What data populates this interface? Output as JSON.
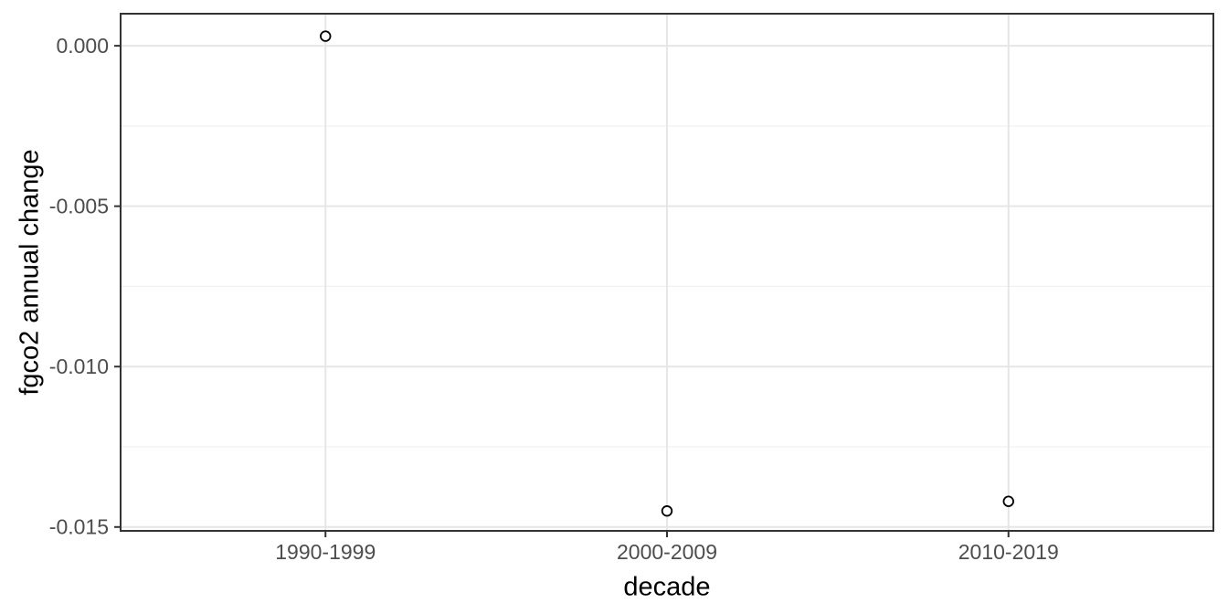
{
  "chart_data": {
    "type": "scatter",
    "xlabel": "decade",
    "ylabel": "fgco2 annual change",
    "categories": [
      "1990-1999",
      "2000-2009",
      "2010-2019"
    ],
    "values": [
      0.0003,
      -0.0145,
      -0.0142
    ],
    "ylim": [
      -0.01512,
      0.001
    ],
    "y_ticks": [
      {
        "value": 0.0,
        "label": "0.000"
      },
      {
        "value": -0.005,
        "label": "-0.005"
      },
      {
        "value": -0.01,
        "label": "-0.010"
      },
      {
        "value": -0.015,
        "label": "-0.015"
      }
    ],
    "grid": "major and minor horizontal, major vertical at categories",
    "legend": "none",
    "point_style": "open-circle"
  },
  "colors": {
    "background": "#ffffff",
    "panel_background": "#ffffff",
    "panel_border": "#333333",
    "grid_major": "#e6e6e6",
    "grid_minor": "#f1f1f1",
    "tick_mark": "#333333",
    "tick_label": "#4d4d4d",
    "axis_title": "#000000",
    "point_stroke": "#000000",
    "point_fill": "#ffffff"
  }
}
